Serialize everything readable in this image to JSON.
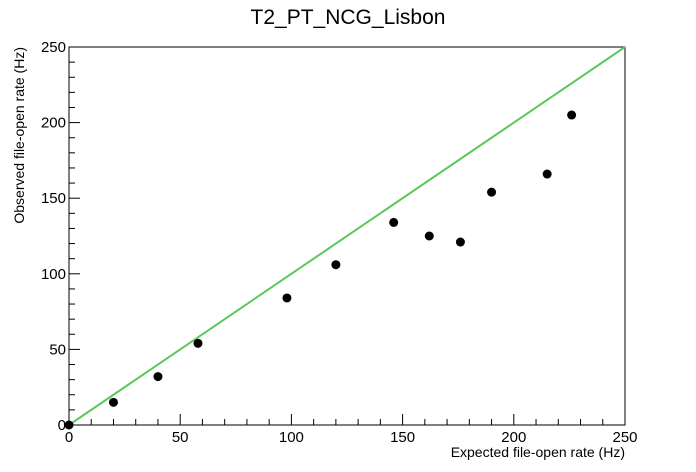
{
  "chart_data": {
    "type": "scatter",
    "title": "T2_PT_NCG_Lisbon",
    "xlabel": "Expected file-open rate (Hz)",
    "ylabel": "Observed file-open rate (Hz)",
    "xlim": [
      0,
      250
    ],
    "ylim": [
      0,
      250
    ],
    "x_ticks": [
      0,
      50,
      100,
      150,
      200,
      250
    ],
    "y_ticks": [
      0,
      50,
      100,
      150,
      200,
      250
    ],
    "grid": false,
    "legend": "none",
    "series": [
      {
        "marker_color": "#000000",
        "points": [
          {
            "x": 0,
            "y": 0
          },
          {
            "x": 20,
            "y": 15
          },
          {
            "x": 40,
            "y": 32
          },
          {
            "x": 58,
            "y": 54
          },
          {
            "x": 98,
            "y": 84
          },
          {
            "x": 120,
            "y": 106
          },
          {
            "x": 146,
            "y": 134
          },
          {
            "x": 162,
            "y": 125
          },
          {
            "x": 176,
            "y": 121
          },
          {
            "x": 190,
            "y": 154
          },
          {
            "x": 215,
            "y": 166
          },
          {
            "x": 226,
            "y": 205
          }
        ]
      }
    ],
    "reference_line": {
      "color": "#5ac85a",
      "points": [
        {
          "x": 0,
          "y": 0
        },
        {
          "x": 250,
          "y": 250
        }
      ]
    }
  }
}
